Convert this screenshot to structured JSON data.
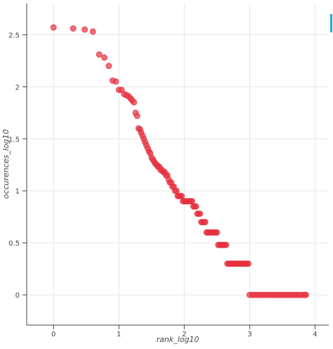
{
  "chart_data": {
    "type": "scatter",
    "x_label": "rank_log10",
    "y_label": "occurences_log10",
    "xlim": [
      -0.41,
      4.21
    ],
    "ylim": [
      -0.29,
      2.8
    ],
    "xticks": [
      0,
      1,
      2,
      3,
      4
    ],
    "yticks": [
      0,
      0.5,
      1,
      1.5,
      2,
      2.5
    ],
    "grid": true,
    "series": [
      {
        "color": "#e5303f",
        "x": [
          0,
          0.301,
          0.477,
          0.602,
          0.699,
          0.778,
          0.845,
          0.903,
          0.954,
          1,
          1.041,
          1.079,
          1.114,
          1.146,
          1.176,
          1.204,
          1.23,
          1.255,
          1.279,
          1.301,
          1.322,
          1.34,
          1.36,
          1.38,
          1.4,
          1.42,
          1.44,
          1.46,
          1.48,
          1.5,
          1.52,
          1.54,
          1.56,
          1.58,
          1.6,
          1.62,
          1.64,
          1.66,
          1.68,
          1.7,
          1.72,
          1.74,
          1.76,
          1.78,
          1.8,
          1.82,
          1.84,
          1.86,
          1.88,
          1.9,
          1.92,
          1.94,
          1.96,
          1.98,
          2,
          2.02,
          2.04,
          2.06,
          2.08,
          2.1,
          2.12,
          2.14,
          2.16,
          2.18,
          2.2,
          2.22,
          2.24,
          2.26,
          2.28,
          2.3,
          2.32,
          2.34,
          2.36,
          2.38,
          2.4,
          2.42,
          2.44,
          2.46,
          2.48,
          2.5,
          2.52,
          2.54,
          2.56,
          2.58,
          2.6,
          2.62,
          2.64,
          2.66,
          2.68,
          2.7,
          2.72,
          2.74,
          2.76,
          2.78,
          2.8,
          2.82,
          2.84,
          2.86,
          2.88,
          2.9,
          2.92,
          2.94,
          2.96,
          2.98,
          3,
          3.04,
          3.08,
          3.12,
          3.16,
          3.2,
          3.24,
          3.28,
          3.32,
          3.36,
          3.4,
          3.44,
          3.48,
          3.52,
          3.56,
          3.6,
          3.64,
          3.68,
          3.72,
          3.76,
          3.8,
          3.84,
          3.86
        ],
        "values": [
          2.57,
          2.56,
          2.55,
          2.53,
          2.31,
          2.28,
          2.2,
          2.06,
          2.05,
          1.97,
          1.97,
          1.93,
          1.92,
          1.91,
          1.89,
          1.87,
          1.85,
          1.75,
          1.72,
          1.6,
          1.59,
          1.56,
          1.53,
          1.5,
          1.47,
          1.44,
          1.41,
          1.38,
          1.36,
          1.32,
          1.3,
          1.28,
          1.26,
          1.25,
          1.23,
          1.23,
          1.2,
          1.2,
          1.18,
          1.18,
          1.15,
          1.15,
          1.11,
          1.08,
          1.08,
          1.04,
          1.04,
          1,
          1,
          0.95,
          0.95,
          0.95,
          0.95,
          0.9,
          0.9,
          0.9,
          0.9,
          0.9,
          0.9,
          0.9,
          0.9,
          0.85,
          0.85,
          0.85,
          0.78,
          0.78,
          0.78,
          0.7,
          0.7,
          0.7,
          0.7,
          0.6,
          0.6,
          0.6,
          0.6,
          0.6,
          0.6,
          0.6,
          0.6,
          0.6,
          0.48,
          0.48,
          0.48,
          0.48,
          0.48,
          0.48,
          0.48,
          0.3,
          0.3,
          0.3,
          0.3,
          0.3,
          0.3,
          0.3,
          0.3,
          0.3,
          0.3,
          0.3,
          0.3,
          0.3,
          0.3,
          0.3,
          0.3,
          0.3,
          0,
          0,
          0,
          0,
          0,
          0,
          0,
          0,
          0,
          0,
          0,
          0,
          0,
          0,
          0,
          0,
          0,
          0,
          0,
          0,
          0,
          0,
          0
        ]
      }
    ]
  }
}
